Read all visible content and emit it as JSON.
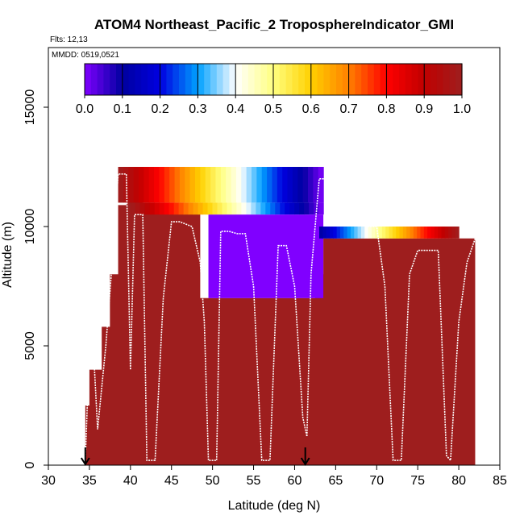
{
  "chart_data": {
    "type": "heatmap",
    "title": "ATOM4 Northeast_Pacific_2 TroposphereIndicator_GMI",
    "flights_label": "Flts: 12,13",
    "date_label": "MMDD: 0519,0521",
    "xlabel": "Latitude (deg N)",
    "ylabel": "Altitude (m)",
    "xlim": [
      30,
      85
    ],
    "ylim": [
      0,
      17500
    ],
    "x_ticks": [
      30,
      35,
      40,
      45,
      50,
      55,
      60,
      65,
      70,
      75,
      80,
      85
    ],
    "y_ticks": [
      0,
      5000,
      10000,
      15000
    ],
    "colorbar": {
      "ticks": [
        0.0,
        0.1,
        0.2,
        0.3,
        0.4,
        0.5,
        0.6,
        0.7,
        0.8,
        0.9,
        1.0
      ],
      "tick_labels": [
        "0.0",
        "0.1",
        "0.2",
        "0.3",
        "0.4",
        "0.5",
        "0.6",
        "0.7",
        "0.8",
        "0.9",
        "1.0"
      ],
      "range": [
        0,
        1
      ],
      "colors": [
        "#8000ff",
        "#0000a0",
        "#0000e0",
        "#00a0ff",
        "#ffffff",
        "#ffff80",
        "#ffd000",
        "#ff8000",
        "#ff0000",
        "#c00000",
        "#9e1e1e"
      ]
    },
    "grid": false,
    "legend": "top-colorbar",
    "fill_regions": [
      {
        "name": "lower-troposphere",
        "x0": 33.5,
        "x1": 82.0,
        "value": 1.0,
        "tops": [
          [
            33.5,
            0
          ],
          [
            34.5,
            2500
          ],
          [
            35.0,
            4000
          ],
          [
            36.5,
            5800
          ],
          [
            37.5,
            8000
          ],
          [
            38.5,
            10900
          ],
          [
            39.5,
            12200
          ],
          [
            40.5,
            12500
          ],
          [
            41.5,
            10900
          ],
          [
            46.5,
            10900
          ],
          [
            48.5,
            7000
          ],
          [
            57.0,
            7000
          ],
          [
            61.0,
            7000
          ],
          [
            62.5,
            8000
          ],
          [
            63.5,
            9500
          ],
          [
            68.5,
            9500
          ],
          [
            80.0,
            9500
          ],
          [
            81.0,
            9500
          ],
          [
            82.0,
            8900
          ]
        ]
      },
      {
        "name": "upper-gradient-band",
        "x0": 38.5,
        "x1": 63.5,
        "y0": 11000,
        "y1": 12500,
        "value_start": 1.0,
        "value_end": 0.0
      },
      {
        "name": "mid-gradient-band",
        "x0": 40.0,
        "x1": 63.5,
        "y0": 10500,
        "y1": 11000,
        "value_start": 1.0,
        "value_end": 0.0
      },
      {
        "name": "stratospheric-block",
        "x0": 49.5,
        "x1": 63.5,
        "y0": 7000,
        "y1": 10500,
        "value": 0.0
      },
      {
        "name": "right-upper-band",
        "x0": 63.0,
        "x1": 80.0,
        "y0": 9500,
        "y1": 10000,
        "value_start": 0.1,
        "value_end": 1.0
      }
    ],
    "flight_track": {
      "x": [
        34.5,
        35.0,
        35.5,
        36.0,
        37.0,
        38.0,
        38.5,
        39.5,
        40.0,
        40.5,
        41.5,
        42.0,
        43.0,
        44.0,
        45.0,
        46.0,
        47.5,
        48.5,
        49.0,
        49.5,
        50.5,
        51.0,
        52.0,
        53.0,
        54.0,
        55.0,
        56.0,
        57.0,
        58.0,
        59.0,
        60.0,
        61.0,
        61.5,
        62.0,
        63.0,
        64.0,
        65.0,
        67.5,
        68.5,
        69.0,
        70.0,
        71.0,
        72.0,
        73.0,
        74.0,
        75.0,
        76.0,
        77.5,
        78.5,
        79.0,
        80.0,
        81.0,
        82.0
      ],
      "y": [
        200,
        5000,
        4800,
        1500,
        5000,
        9500,
        12200,
        12200,
        4000,
        10500,
        10500,
        200,
        200,
        7000,
        10200,
        10200,
        10000,
        8500,
        6000,
        200,
        200,
        9800,
        9800,
        9700,
        9700,
        7500,
        200,
        200,
        9200,
        9200,
        7500,
        2000,
        1200,
        8000,
        12000,
        12000,
        12000,
        12000,
        11000,
        10000,
        10000,
        7500,
        200,
        200,
        8000,
        9000,
        9000,
        9000,
        400,
        200,
        6000,
        8500,
        9500
      ]
    },
    "markers": [
      {
        "name": "flight-12-start",
        "x": 34.5,
        "y": 0
      },
      {
        "name": "flight-13-start",
        "x": 61.3,
        "y": 0
      }
    ]
  }
}
